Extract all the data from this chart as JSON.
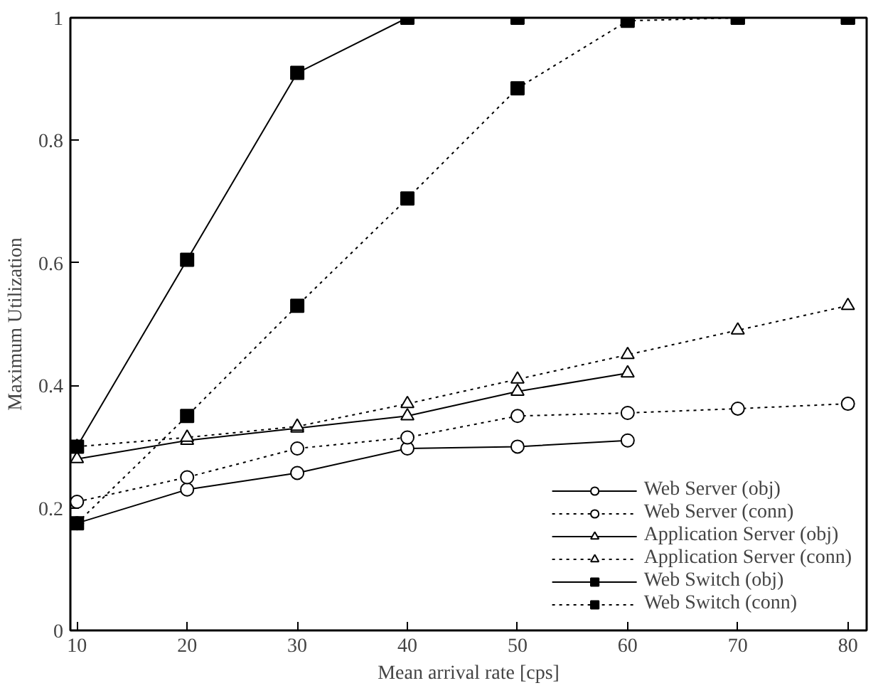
{
  "chart_data": {
    "type": "line",
    "xlabel": "Mean arrival rate [cps]",
    "ylabel": "Maximum Utilization",
    "x": [
      10,
      20,
      30,
      40,
      50,
      60,
      70,
      80
    ],
    "xlim": [
      9.4,
      81.7
    ],
    "xticks": [
      10,
      20,
      30,
      40,
      50,
      60,
      70,
      80
    ],
    "ylim": [
      0,
      1
    ],
    "yticks": [
      0,
      0.2,
      0.4,
      0.6,
      0.8,
      1
    ],
    "grid": false,
    "legend": "bottom right",
    "series": [
      {
        "name": "Web Server (obj)",
        "color": "#000000",
        "marker": "circle",
        "line_style": "solid",
        "values": [
          0.175,
          0.23,
          0.257,
          0.297,
          0.3,
          0.31,
          null,
          null
        ]
      },
      {
        "name": "Web Server (conn)",
        "color": "#000000",
        "marker": "circle",
        "line_style": "dotted",
        "values": [
          0.21,
          0.25,
          0.297,
          0.315,
          0.35,
          0.355,
          0.362,
          0.37
        ]
      },
      {
        "name": "Application Server (obj)",
        "color": "#000000",
        "marker": "triangle",
        "line_style": "solid",
        "values": [
          0.28,
          0.31,
          0.33,
          0.35,
          0.39,
          0.42,
          null,
          null
        ]
      },
      {
        "name": "Application Server (conn)",
        "color": "#000000",
        "marker": "triangle",
        "line_style": "dotted",
        "values": [
          0.3,
          0.315,
          0.333,
          0.37,
          0.41,
          0.45,
          0.49,
          0.53
        ]
      },
      {
        "name": "Web Switch (obj)",
        "color": "#000000",
        "marker": "square",
        "line_style": "solid",
        "values": [
          0.3,
          0.605,
          0.91,
          1,
          1,
          1,
          1,
          1
        ]
      },
      {
        "name": "Web Switch (conn)",
        "color": "#000000",
        "marker": "square",
        "line_style": "dotted",
        "values": [
          0.175,
          0.35,
          0.53,
          0.705,
          0.885,
          0.995,
          1,
          1
        ]
      }
    ]
  }
}
